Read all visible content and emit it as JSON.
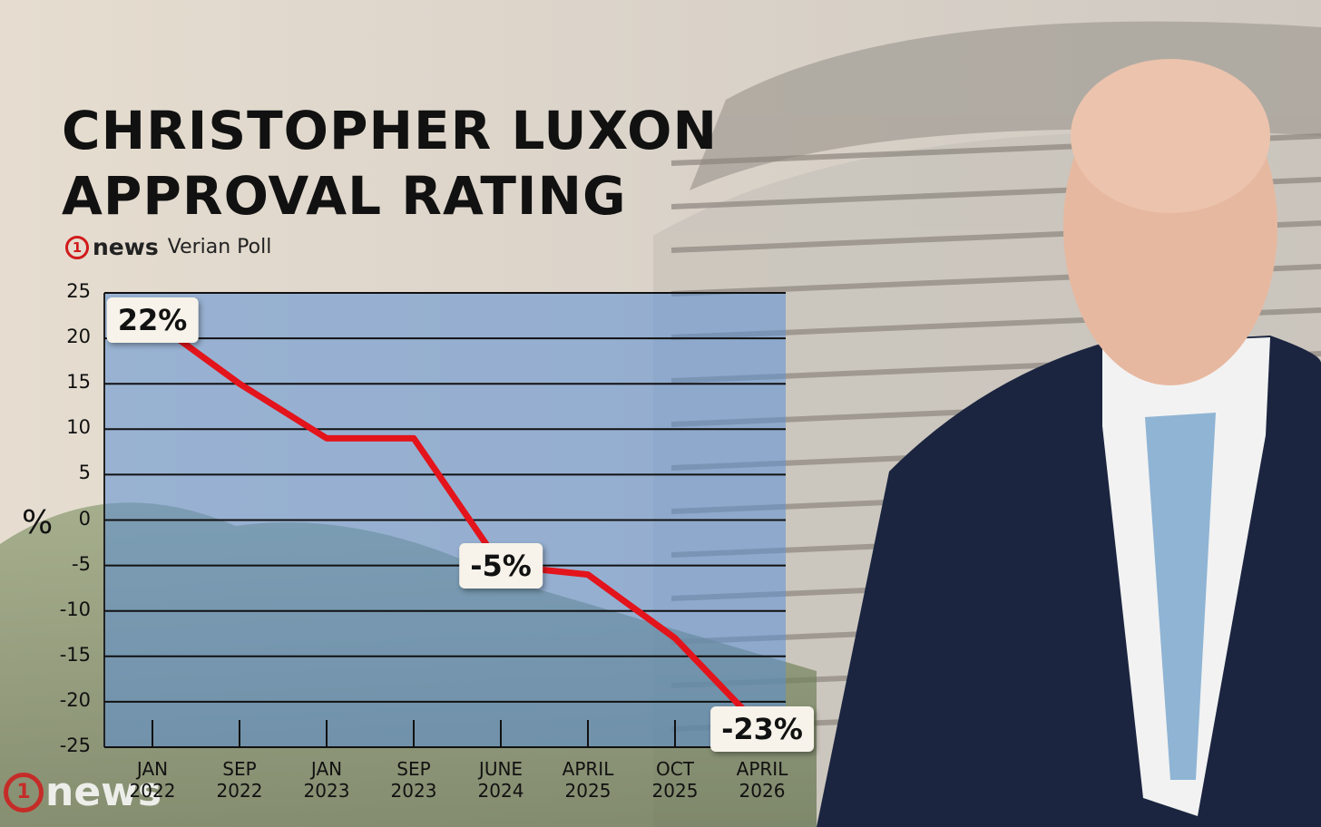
{
  "chart_data": {
    "type": "line",
    "title": "CHRISTOPHER LUXON APPROVAL RATING",
    "source": {
      "logo_number": "1",
      "logo_text": "news",
      "name": "Verian Poll"
    },
    "y_label": "%",
    "categories": [
      "JAN 2022",
      "SEP 2022",
      "JAN 2023",
      "SEP 2023",
      "JUNE 2024",
      "APRIL 2025",
      "OCT 2025",
      "APRIL 2026"
    ],
    "series": [
      {
        "color": "#e3141b",
        "values": [
          22,
          15,
          9,
          9,
          -5,
          -6,
          -13,
          -23
        ],
        "value_labels": [
          "22%",
          null,
          null,
          null,
          "-5%",
          null,
          null,
          "-23%"
        ]
      }
    ],
    "ylim": [
      -25,
      25
    ],
    "yticks": [
      25,
      20,
      15,
      10,
      5,
      0,
      -5,
      -10,
      -15,
      -20,
      -25
    ],
    "grid": true
  }
}
